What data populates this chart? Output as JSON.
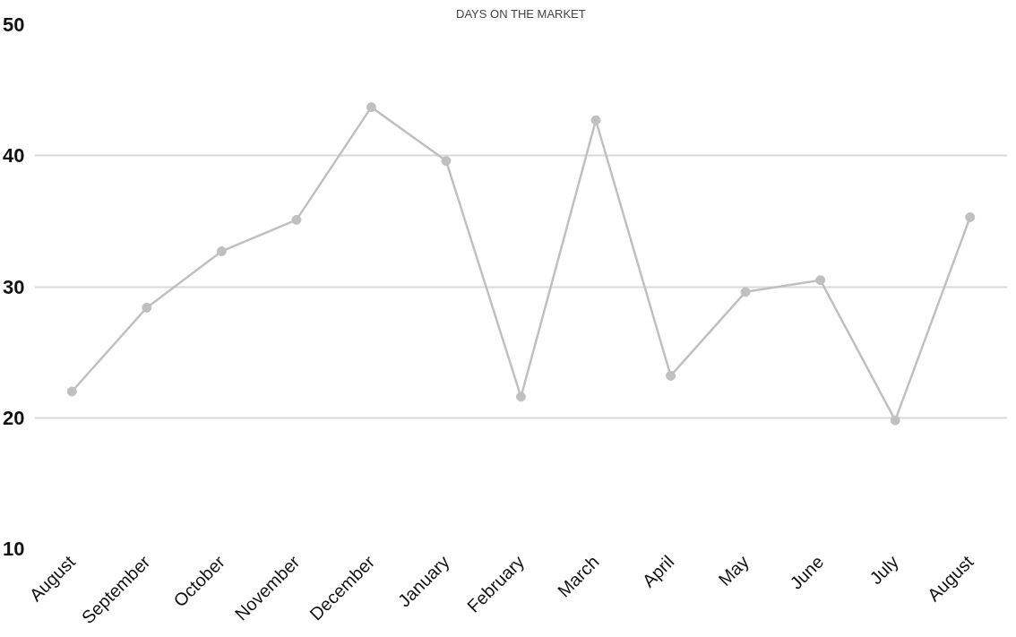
{
  "chart_data": {
    "type": "line",
    "title": "DAYS ON THE MARKET",
    "categories": [
      "August",
      "September",
      "October",
      "November",
      "December",
      "January",
      "February",
      "March",
      "April",
      "May",
      "June",
      "July",
      "August"
    ],
    "series": [
      {
        "color": "#c0c0c0",
        "values": [
          22,
          28.4,
          32.7,
          35.1,
          43.7,
          39.6,
          21.6,
          42.7,
          23.2,
          29.6,
          30.5,
          19.8,
          35.3
        ]
      }
    ],
    "ylim": [
      10,
      50
    ],
    "yticks": [
      10,
      20,
      30,
      40,
      50
    ],
    "grid": "y",
    "marker": "circle",
    "line_style": "solid"
  }
}
